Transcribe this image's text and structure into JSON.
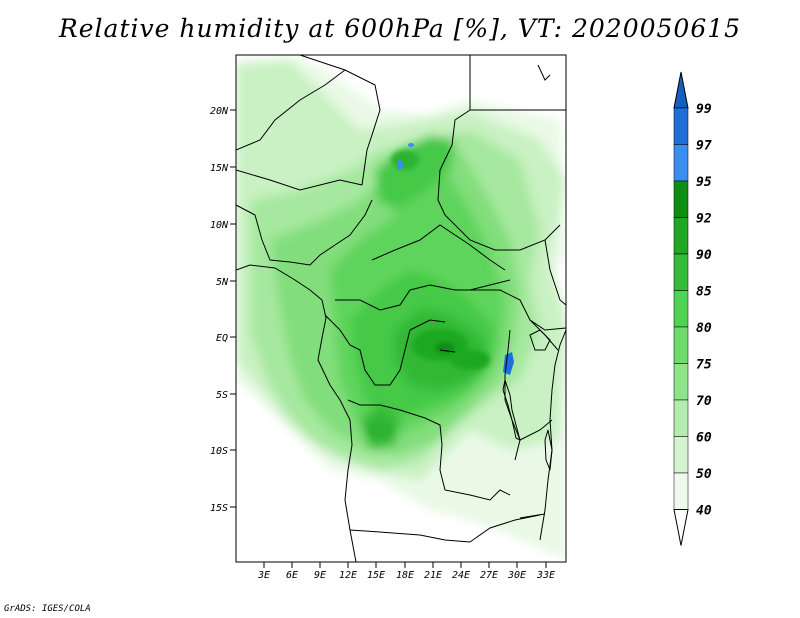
{
  "title": "Relative humidity at 600hPa [%], VT: 2020050615",
  "credit": "GrADS: IGES/COLA",
  "lat_ticks": [
    "20N",
    "15N",
    "10N",
    "5N",
    "EQ",
    "5S",
    "10S",
    "15S"
  ],
  "lon_ticks": [
    "3E",
    "6E",
    "9E",
    "12E",
    "15E",
    "18E",
    "21E",
    "24E",
    "27E",
    "30E",
    "33E"
  ],
  "colorbar": {
    "levels": [
      "99",
      "97",
      "95",
      "92",
      "90",
      "85",
      "80",
      "75",
      "70",
      "60",
      "50",
      "40"
    ],
    "colors": [
      "#1560bd",
      "#1e6fd9",
      "#3a8ef0",
      "#0e8f12",
      "#1fa823",
      "#34bd38",
      "#4fd352",
      "#6ddc6a",
      "#8fe48b",
      "#b3edae",
      "#d3f4cf",
      "#eefbec",
      "#ffffff"
    ]
  }
}
